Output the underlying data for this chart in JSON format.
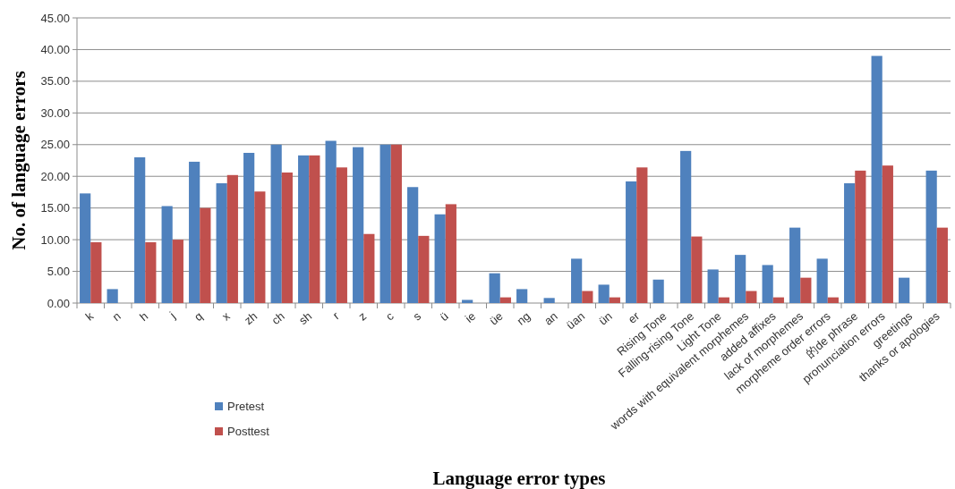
{
  "chart_data": {
    "type": "bar",
    "xlabel": "Language error types",
    "ylabel": "No. of language errors",
    "categories": [
      "k",
      "n",
      "h",
      "j",
      "q",
      "x",
      "zh",
      "ch",
      "sh",
      "r",
      "z",
      "c",
      "s",
      "ü",
      "ie",
      "üe",
      "ng",
      "an",
      "üan",
      "ün",
      "er",
      "Rising Tone",
      "Falling-rising Tone",
      "Light Tone",
      "words with equivalent morphemes",
      "added affixes",
      "lack of morphemes",
      "morpheme order errors",
      "的de phrase",
      "pronunciation errors",
      "greetings",
      "thanks or apologies"
    ],
    "series": [
      {
        "name": "Pretest",
        "color": "#4f81bd",
        "values": [
          17.3,
          2.2,
          23.0,
          15.3,
          22.3,
          18.9,
          23.7,
          25.0,
          23.3,
          25.6,
          24.6,
          25.0,
          18.3,
          14.0,
          0.5,
          4.7,
          2.2,
          0.8,
          7.0,
          2.9,
          19.2,
          3.7,
          24.0,
          5.3,
          7.6,
          6.0,
          11.9,
          7.0,
          18.9,
          39.0,
          4.0,
          20.9
        ]
      },
      {
        "name": "Posttest",
        "color": "#c0504d",
        "values": [
          9.6,
          0,
          9.6,
          10.0,
          15.0,
          20.2,
          17.6,
          20.6,
          23.3,
          21.4,
          10.9,
          25.0,
          10.6,
          15.6,
          0,
          0.9,
          0,
          0,
          1.9,
          0.9,
          21.4,
          0,
          10.5,
          0.9,
          1.9,
          0.9,
          4.0,
          0.9,
          20.9,
          21.7,
          0,
          11.9
        ]
      }
    ],
    "ylim": [
      0,
      45
    ],
    "yticks": [
      {
        "value": 0,
        "label": "0.00"
      },
      {
        "value": 5,
        "label": "5.00"
      },
      {
        "value": 10,
        "label": "10.00"
      },
      {
        "value": 15,
        "label": "15.00"
      },
      {
        "value": 20,
        "label": "20.00"
      },
      {
        "value": 25,
        "label": "25.00"
      },
      {
        "value": 30,
        "label": "30.00"
      },
      {
        "value": 35,
        "label": "35.00"
      },
      {
        "value": 40,
        "label": "40.00"
      },
      {
        "value": 45,
        "label": "45.00"
      }
    ],
    "grid": "y",
    "legend": "bottom left"
  }
}
